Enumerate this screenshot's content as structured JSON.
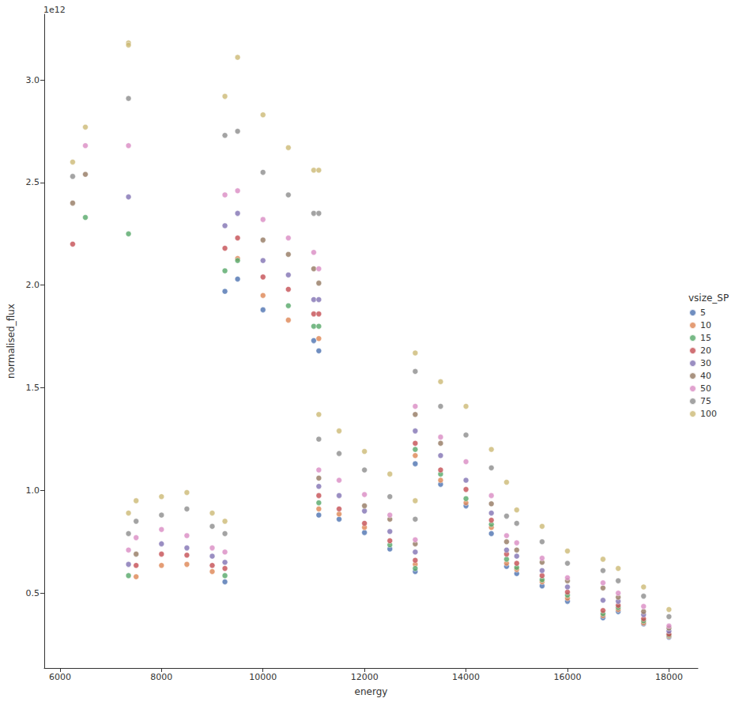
{
  "chart_data": {
    "type": "scatter",
    "x_label": "energy",
    "y_label": "normalised_flux",
    "annotations": [
      "1e12"
    ],
    "legend_title": "vsize_SP",
    "legend": "right",
    "grid": false,
    "marker": "circle",
    "xlim": [
      5690,
      18570
    ],
    "xticks": [
      6000,
      8000,
      10000,
      12000,
      14000,
      16000,
      18000
    ],
    "ylim": [
      0.135,
      3.32
    ],
    "yticks": [
      0.5,
      {
        "value": 1,
        "label": "1.0"
      },
      1.5,
      {
        "value": 2,
        "label": "2.0"
      },
      2.5,
      {
        "value": 3,
        "label": "3.0"
      }
    ],
    "series": [
      {
        "name": "5",
        "color": "#4c72b0",
        "x": [
          9250,
          9250,
          9500,
          10000,
          11000,
          11100,
          11100,
          11500,
          12000,
          12500,
          13000,
          13000,
          13500,
          14000,
          14500,
          14800,
          15000,
          15500,
          16000,
          16700,
          17000,
          17500,
          18000
        ],
        "values": [
          1.97,
          0.555,
          2.03,
          1.88,
          1.73,
          1.68,
          0.88,
          0.86,
          0.795,
          0.715,
          1.13,
          0.605,
          1.03,
          0.925,
          0.79,
          0.63,
          0.595,
          0.535,
          0.46,
          0.38,
          0.41,
          0.35,
          0.285
        ]
      },
      {
        "name": "10",
        "color": "#dd8452",
        "x": [
          7500,
          8000,
          8500,
          9000,
          9500,
          10000,
          10500,
          11100,
          11100,
          11500,
          12000,
          13000,
          13000,
          13500,
          14000,
          14500,
          14800,
          15000,
          15500,
          16000,
          16700,
          17000,
          17500,
          18000
        ],
        "values": [
          0.58,
          0.635,
          0.64,
          0.605,
          2.13,
          1.95,
          1.83,
          1.74,
          0.91,
          0.885,
          0.82,
          1.17,
          0.64,
          1.05,
          0.94,
          0.82,
          0.645,
          0.615,
          0.555,
          0.475,
          0.39,
          0.42,
          0.355,
          0.29
        ]
      },
      {
        "name": "15",
        "color": "#55a868",
        "x": [
          6500,
          7350,
          7350,
          9250,
          9250,
          9500,
          10500,
          11000,
          11100,
          11100,
          12500,
          13000,
          13000,
          13500,
          14000,
          14500,
          14800,
          15000,
          15500,
          16000,
          16700,
          17000,
          17500,
          18000
        ],
        "values": [
          2.33,
          2.25,
          0.585,
          2.07,
          0.585,
          2.12,
          1.9,
          1.8,
          1.8,
          0.94,
          0.735,
          1.2,
          0.62,
          1.08,
          0.96,
          0.835,
          0.665,
          0.625,
          0.565,
          0.49,
          0.4,
          0.43,
          0.365,
          0.295
        ]
      },
      {
        "name": "20",
        "color": "#c44e52",
        "x": [
          6250,
          7500,
          8000,
          8500,
          9000,
          9250,
          9250,
          9500,
          10000,
          10500,
          11000,
          11100,
          11100,
          11500,
          12000,
          12500,
          13000,
          13000,
          13500,
          14000,
          14500,
          14800,
          15000,
          15500,
          16000,
          16700,
          17000,
          17500,
          18000
        ],
        "values": [
          2.2,
          0.635,
          0.69,
          0.685,
          0.635,
          2.18,
          0.62,
          2.23,
          2.04,
          1.98,
          1.86,
          1.86,
          0.975,
          0.91,
          0.84,
          0.755,
          1.23,
          0.66,
          1.1,
          1.005,
          0.855,
          0.69,
          0.645,
          0.585,
          0.505,
          0.415,
          0.44,
          0.375,
          0.3
        ]
      },
      {
        "name": "30",
        "color": "#8172b3",
        "x": [
          7350,
          7350,
          8000,
          8500,
          9000,
          9250,
          9250,
          9500,
          10000,
          10500,
          11000,
          11100,
          11100,
          11500,
          12000,
          12500,
          13000,
          13000,
          13500,
          14000,
          14500,
          14800,
          15000,
          15500,
          16000,
          16700,
          17000,
          17500,
          18000
        ],
        "values": [
          2.43,
          0.64,
          0.74,
          0.72,
          0.68,
          2.29,
          0.65,
          2.35,
          2.12,
          2.05,
          1.93,
          1.93,
          1.02,
          0.975,
          0.9,
          0.8,
          1.29,
          0.7,
          1.17,
          1.05,
          0.89,
          0.71,
          0.68,
          0.61,
          0.53,
          0.465,
          0.46,
          0.395,
          0.315
        ]
      },
      {
        "name": "40",
        "color": "#937860",
        "x": [
          6250,
          6500,
          7500,
          10000,
          10500,
          11000,
          11100,
          11100,
          12000,
          12500,
          13000,
          13000,
          13500,
          14500,
          14800,
          15000,
          15500,
          16000,
          16700,
          17000,
          17500,
          18000
        ],
        "values": [
          2.4,
          2.54,
          0.69,
          2.22,
          2.15,
          2.08,
          2.01,
          1.06,
          0.925,
          0.86,
          1.37,
          0.74,
          1.23,
          0.935,
          0.75,
          0.71,
          0.65,
          0.56,
          0.525,
          0.48,
          0.41,
          0.33
        ]
      },
      {
        "name": "50",
        "color": "#da8bc3",
        "x": [
          6500,
          7350,
          7350,
          7500,
          8000,
          8500,
          9000,
          9250,
          9250,
          9500,
          10000,
          10500,
          11000,
          11100,
          11100,
          11500,
          12000,
          12500,
          13000,
          13000,
          13500,
          14000,
          14500,
          14800,
          15000,
          15500,
          16000,
          16700,
          17000,
          17500,
          18000
        ],
        "values": [
          2.68,
          2.68,
          0.71,
          0.77,
          0.81,
          0.78,
          0.72,
          2.44,
          0.7,
          2.46,
          2.32,
          2.23,
          2.16,
          2.08,
          1.1,
          1.05,
          0.98,
          0.88,
          1.41,
          0.76,
          1.26,
          1.14,
          0.975,
          0.78,
          0.745,
          0.67,
          0.575,
          0.55,
          0.5,
          0.435,
          0.34
        ]
      },
      {
        "name": "75",
        "color": "#8c8c8c",
        "x": [
          6250,
          7350,
          7350,
          7500,
          8000,
          8500,
          9000,
          9250,
          9250,
          9500,
          10000,
          10500,
          11000,
          11100,
          11100,
          11500,
          12000,
          12500,
          13000,
          13000,
          13500,
          14000,
          14500,
          14800,
          15000,
          15500,
          16000,
          16700,
          17000,
          17500,
          18000
        ],
        "values": [
          2.53,
          2.91,
          0.79,
          0.85,
          0.88,
          0.91,
          0.825,
          2.73,
          0.79,
          2.75,
          2.55,
          2.44,
          2.35,
          2.35,
          1.25,
          1.18,
          1.1,
          0.97,
          1.58,
          0.86,
          1.41,
          1.27,
          1.11,
          0.875,
          0.84,
          0.75,
          0.645,
          0.61,
          0.56,
          0.485,
          0.385
        ]
      },
      {
        "name": "100",
        "color": "#ccb974",
        "x": [
          6250,
          6500,
          7350,
          7350,
          7350,
          7500,
          8000,
          8500,
          9000,
          9250,
          9250,
          9500,
          10000,
          10500,
          11000,
          11100,
          11100,
          11500,
          12000,
          12500,
          13000,
          13000,
          13500,
          14000,
          14500,
          14800,
          15000,
          15500,
          16000,
          16700,
          17000,
          17500,
          18000
        ],
        "values": [
          2.6,
          2.77,
          3.18,
          3.17,
          0.89,
          0.95,
          0.97,
          0.99,
          0.89,
          2.92,
          0.85,
          3.11,
          2.83,
          2.67,
          2.56,
          2.56,
          1.37,
          1.29,
          1.19,
          1.08,
          1.67,
          0.95,
          1.53,
          1.41,
          1.2,
          1.04,
          0.905,
          0.825,
          0.705,
          0.665,
          0.62,
          0.53,
          0.42
        ]
      }
    ]
  }
}
